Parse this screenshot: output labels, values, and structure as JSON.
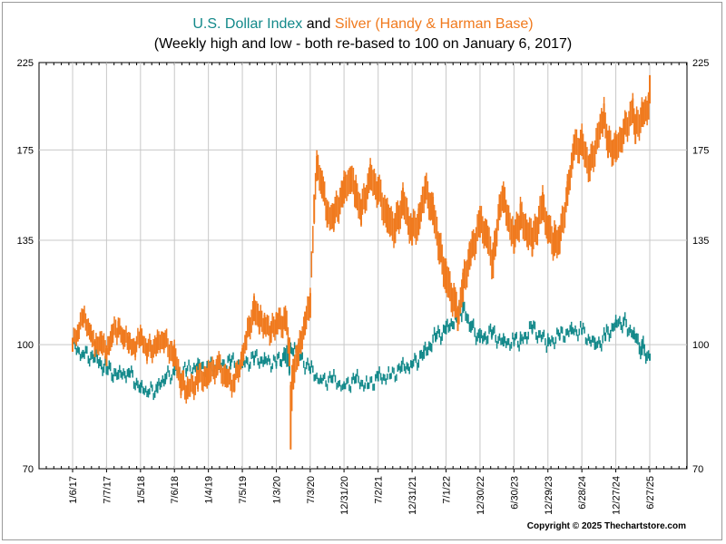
{
  "title": {
    "usd_name": "U.S. Dollar Index",
    "connector": "and",
    "silver_name": "Silver (Handy & Harman Base)",
    "subtitle": "(Weekly high and low - both re-based to 100 on January 6, 2017)"
  },
  "copyright": "Copyright © 2025 Thechartstore.com",
  "colors": {
    "usd": "#13898a",
    "silver": "#f07a1e",
    "grid": "#c8c8c8"
  },
  "chart_data": {
    "type": "line",
    "y_scale": "log",
    "ylim": [
      70,
      225
    ],
    "y_ticks": [
      70,
      100,
      135,
      175,
      225
    ],
    "y_tick_labels": [
      "70",
      "100",
      "135",
      "175",
      "225"
    ],
    "x_tick_labels": [
      "1/6/17",
      "7/7/17",
      "1/5/18",
      "7/6/18",
      "1/4/19",
      "7/5/19",
      "1/3/20",
      "7/3/20",
      "12/31/20",
      "7/2/21",
      "12/31/21",
      "7/1/22",
      "12/30/22",
      "6/30/23",
      "12/29/23",
      "6/28/24",
      "12/27/24",
      "6/27/25"
    ],
    "grid": true,
    "legend": "none",
    "series": [
      {
        "name": "U.S. Dollar Index",
        "color": "#13898a",
        "x": [
          "1/6/17",
          "3/3/17",
          "5/5/17",
          "7/7/17",
          "9/8/17",
          "11/3/17",
          "1/5/18",
          "2/16/18",
          "4/6/18",
          "5/18/18",
          "7/6/18",
          "9/7/18",
          "11/9/18",
          "1/4/19",
          "3/1/19",
          "5/3/19",
          "7/5/19",
          "9/6/19",
          "11/1/19",
          "1/3/20",
          "2/14/20",
          "3/13/20",
          "3/20/20",
          "4/3/20",
          "5/1/20",
          "7/3/20",
          "8/28/20",
          "10/30/20",
          "12/31/20",
          "3/5/21",
          "5/7/21",
          "7/2/21",
          "9/3/21",
          "11/5/21",
          "12/31/21",
          "3/4/22",
          "5/6/22",
          "7/1/22",
          "8/26/22",
          "9/30/22",
          "11/11/22",
          "12/30/22",
          "3/3/23",
          "5/5/23",
          "6/30/23",
          "8/4/23",
          "10/6/23",
          "12/29/23",
          "3/1/24",
          "5/3/24",
          "6/28/24",
          "9/6/24",
          "11/1/24",
          "12/27/24",
          "2/7/25",
          "4/4/25",
          "5/16/25",
          "6/27/25"
        ],
        "high": [
          100.5,
          98.5,
          97.5,
          94.5,
          92.5,
          93.5,
          89.0,
          88.0,
          89.0,
          92.0,
          93.0,
          93.5,
          95.0,
          94.5,
          95.0,
          96.0,
          95.5,
          97.0,
          96.5,
          95.5,
          98.0,
          101.5,
          99.5,
          99.0,
          98.0,
          94.0,
          91.0,
          91.5,
          89.5,
          91.5,
          89.5,
          92.0,
          92.0,
          94.5,
          95.5,
          98.5,
          103.5,
          105.5,
          109.5,
          112.5,
          107.0,
          103.0,
          104.5,
          101.5,
          102.0,
          102.0,
          106.0,
          101.5,
          103.5,
          105.0,
          105.0,
          100.5,
          103.5,
          107.5,
          108.0,
          104.0,
          101.0,
          97.5
        ],
        "low": [
          98.5,
          96.5,
          95.0,
          92.0,
          90.5,
          91.5,
          87.0,
          86.5,
          87.0,
          90.0,
          91.5,
          92.0,
          93.0,
          92.5,
          93.0,
          94.0,
          93.5,
          95.0,
          94.5,
          94.0,
          95.5,
          92.0,
          97.5,
          97.0,
          96.0,
          92.0,
          89.5,
          89.5,
          88.0,
          89.5,
          88.0,
          90.0,
          90.5,
          92.5,
          93.5,
          96.0,
          101.0,
          103.0,
          107.0,
          109.5,
          104.0,
          100.5,
          102.0,
          99.5,
          100.0,
          100.0,
          103.5,
          99.5,
          101.5,
          103.0,
          103.0,
          98.5,
          101.0,
          105.0,
          105.5,
          101.5,
          97.0,
          95.5
        ]
      },
      {
        "name": "Silver (Handy & Harman Base)",
        "color": "#f07a1e",
        "x": [
          "1/6/17",
          "2/3/17",
          "3/3/17",
          "4/14/17",
          "5/5/17",
          "6/9/17",
          "7/7/17",
          "8/4/17",
          "9/8/17",
          "10/6/17",
          "11/3/17",
          "12/8/17",
          "1/5/18",
          "2/9/18",
          "4/6/18",
          "5/11/18",
          "7/6/18",
          "8/10/18",
          "9/14/18",
          "11/9/18",
          "1/4/19",
          "2/22/19",
          "4/5/19",
          "5/24/19",
          "7/5/19",
          "7/26/19",
          "9/6/19",
          "10/4/19",
          "11/1/19",
          "12/6/19",
          "1/3/20",
          "2/21/20",
          "3/13/20",
          "3/20/20",
          "4/3/20",
          "5/1/20",
          "6/5/20",
          "7/3/20",
          "7/24/20",
          "8/7/20",
          "9/4/20",
          "10/2/20",
          "11/6/20",
          "12/31/20",
          "2/5/21",
          "3/5/21",
          "4/2/21",
          "5/21/21",
          "7/2/21",
          "8/20/21",
          "10/1/21",
          "11/12/21",
          "12/31/21",
          "2/4/22",
          "3/11/22",
          "4/22/22",
          "5/27/22",
          "7/1/22",
          "8/19/22",
          "9/2/22",
          "9/30/22",
          "11/4/22",
          "12/30/22",
          "2/3/23",
          "3/10/23",
          "4/14/23",
          "5/5/23",
          "6/30/23",
          "8/4/23",
          "10/6/23",
          "12/1/23",
          "12/29/23",
          "2/2/24",
          "3/1/24",
          "4/12/24",
          "5/17/24",
          "6/28/24",
          "8/9/24",
          "10/25/24",
          "11/15/24",
          "12/27/24",
          "2/7/25",
          "3/28/25",
          "4/11/25",
          "5/16/25",
          "6/20/25",
          "6/27/25"
        ],
        "high": [
          102.0,
          106.0,
          110.5,
          106.0,
          101.0,
          104.0,
          99.0,
          106.0,
          107.0,
          104.5,
          102.5,
          101.0,
          104.5,
          100.5,
          103.0,
          103.5,
          100.0,
          92.0,
          90.0,
          93.0,
          94.5,
          97.0,
          93.5,
          92.0,
          99.0,
          104.0,
          115.0,
          110.0,
          109.0,
          106.5,
          109.5,
          111.0,
          102.0,
          89.0,
          96.0,
          100.5,
          110.0,
          116.0,
          154.0,
          172.0,
          165.0,
          149.0,
          150.0,
          162.0,
          167.0,
          160.0,
          152.0,
          168.0,
          162.0,
          150.0,
          146.0,
          157.0,
          144.0,
          148.0,
          162.0,
          153.0,
          137.0,
          127.0,
          117.0,
          111.0,
          123.0,
          134.0,
          147.0,
          143.0,
          132.0,
          154.0,
          157.0,
          141.0,
          150.0,
          140.0,
          155.0,
          145.0,
          140.0,
          141.0,
          160.0,
          183.0,
          185.0,
          173.0,
          200.0,
          185.0,
          182.0,
          191.0,
          203.0,
          193.0,
          201.0,
          205.0,
          217.0
        ],
        "low": [
          98.0,
          101.0,
          105.0,
          101.0,
          96.5,
          98.0,
          94.0,
          100.0,
          102.0,
          99.5,
          97.5,
          96.5,
          99.5,
          95.5,
          97.5,
          98.5,
          94.0,
          86.5,
          85.5,
          88.0,
          89.0,
          92.0,
          88.5,
          87.5,
          94.0,
          98.5,
          107.0,
          103.0,
          103.0,
          100.5,
          103.0,
          104.0,
          94.0,
          74.0,
          88.0,
          94.0,
          103.0,
          108.0,
          142.0,
          160.0,
          153.0,
          140.0,
          139.0,
          150.0,
          155.0,
          148.0,
          141.0,
          156.0,
          150.0,
          138.0,
          134.0,
          145.0,
          133.0,
          137.0,
          150.0,
          141.0,
          126.0,
          116.0,
          108.0,
          104.0,
          113.0,
          124.0,
          136.0,
          132.0,
          121.0,
          143.0,
          146.0,
          130.0,
          139.0,
          129.0,
          143.0,
          134.0,
          129.0,
          130.0,
          149.0,
          170.0,
          172.0,
          160.0,
          186.0,
          171.0,
          169.0,
          178.0,
          189.0,
          178.0,
          187.0,
          191.0,
          200.0
        ]
      }
    ]
  }
}
